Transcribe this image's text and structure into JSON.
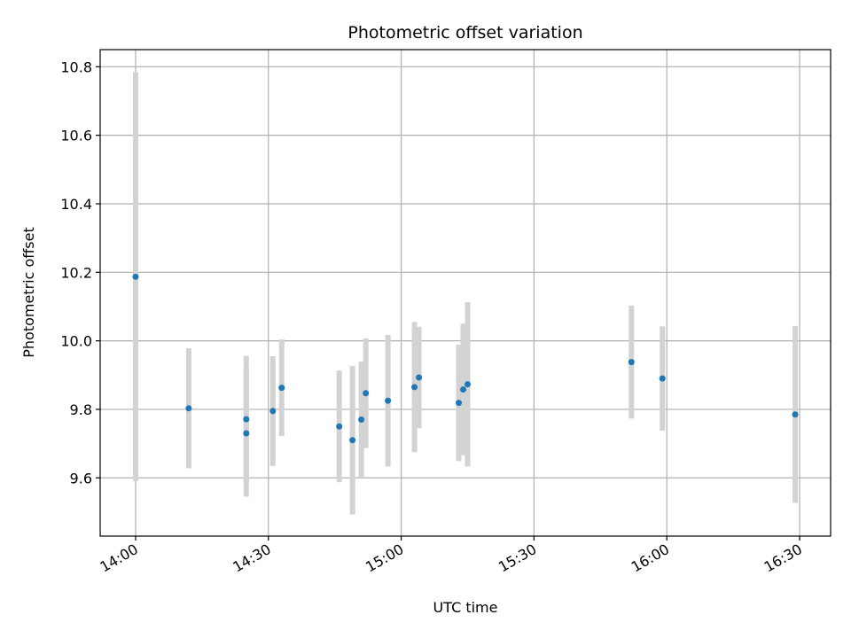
{
  "chart_data": {
    "type": "scatter",
    "title": "Photometric offset variation",
    "xlabel": "UTC time",
    "ylabel": "Photometric offset",
    "xlim": [
      "13:52",
      "16:37"
    ],
    "ylim": [
      9.43,
      10.85
    ],
    "x_ticks": [
      "14:00",
      "14:30",
      "15:00",
      "15:30",
      "16:00",
      "16:30"
    ],
    "y_ticks": [
      "9.6",
      "9.8",
      "10.0",
      "10.2",
      "10.4",
      "10.6",
      "10.8"
    ],
    "grid": true,
    "colors": {
      "point": "#1f77b4",
      "errorbar": "#d3d3d3",
      "grid": "#b0b0b0"
    },
    "points": [
      {
        "time": "14:00",
        "y": 10.187,
        "err": 0.597
      },
      {
        "time": "14:12",
        "y": 9.803,
        "err": 0.175
      },
      {
        "time": "14:25",
        "y": 9.73,
        "err": 0.185
      },
      {
        "time": "14:25",
        "y": 9.771,
        "err": 0.185
      },
      {
        "time": "14:31",
        "y": 9.795,
        "err": 0.16
      },
      {
        "time": "14:33",
        "y": 9.863,
        "err": 0.141
      },
      {
        "time": "14:46",
        "y": 9.75,
        "err": 0.163
      },
      {
        "time": "14:49",
        "y": 9.71,
        "err": 0.217
      },
      {
        "time": "14:51",
        "y": 9.77,
        "err": 0.17
      },
      {
        "time": "14:52",
        "y": 9.847,
        "err": 0.16
      },
      {
        "time": "14:57",
        "y": 9.825,
        "err": 0.192
      },
      {
        "time": "15:03",
        "y": 9.865,
        "err": 0.19
      },
      {
        "time": "15:04",
        "y": 9.893,
        "err": 0.148
      },
      {
        "time": "15:13",
        "y": 9.819,
        "err": 0.17
      },
      {
        "time": "15:14",
        "y": 9.858,
        "err": 0.192
      },
      {
        "time": "15:15",
        "y": 9.873,
        "err": 0.24
      },
      {
        "time": "15:52",
        "y": 9.938,
        "err": 0.165
      },
      {
        "time": "15:59",
        "y": 9.89,
        "err": 0.152
      },
      {
        "time": "16:29",
        "y": 9.785,
        "err": 0.258
      }
    ]
  }
}
